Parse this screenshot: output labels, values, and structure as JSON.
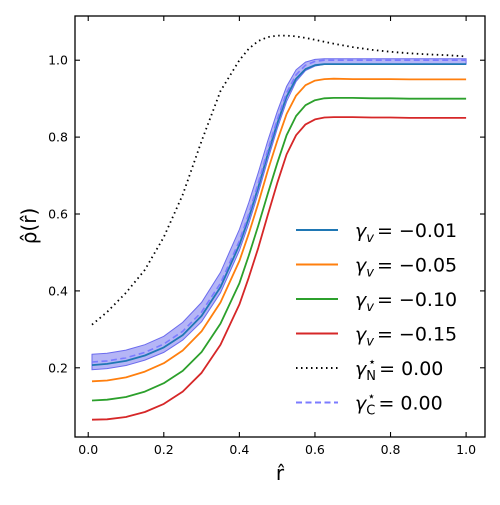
{
  "chart_data": {
    "type": "line",
    "xlabel": "r̂",
    "ylabel": "ρ̂(r̂)",
    "xlim": [
      -0.035,
      1.05
    ],
    "ylim": [
      0.02,
      1.115
    ],
    "x_ticks": [
      0.0,
      0.2,
      0.4,
      0.6,
      0.8,
      1.0
    ],
    "x_tick_labels": [
      "0.0",
      "0.2",
      "0.4",
      "0.6",
      "0.8",
      "1.0"
    ],
    "y_ticks": [
      0.2,
      0.4,
      0.6,
      0.8,
      1.0
    ],
    "y_tick_labels": [
      "0.2",
      "0.4",
      "0.6",
      "0.8",
      "1.0"
    ],
    "grid": false,
    "legend_position": "lower-right",
    "x": [
      0.01,
      0.05,
      0.1,
      0.15,
      0.2,
      0.25,
      0.3,
      0.35,
      0.4,
      0.425,
      0.45,
      0.475,
      0.5,
      0.525,
      0.55,
      0.575,
      0.6,
      0.625,
      0.65,
      0.7,
      0.75,
      0.8,
      0.85,
      0.9,
      0.95,
      1.0
    ],
    "series": [
      {
        "legend": "−0.01",
        "color": "#1f77b4",
        "style": "solid",
        "values": [
          0.207,
          0.21,
          0.218,
          0.232,
          0.253,
          0.285,
          0.335,
          0.41,
          0.52,
          0.59,
          0.67,
          0.755,
          0.835,
          0.905,
          0.952,
          0.977,
          0.987,
          0.99,
          0.99,
          0.99,
          0.99,
          0.99,
          0.99,
          0.99,
          0.99,
          0.99
        ]
      },
      {
        "legend": "−0.05",
        "color": "#ff7f0e",
        "style": "solid",
        "values": [
          0.165,
          0.167,
          0.175,
          0.19,
          0.212,
          0.245,
          0.295,
          0.37,
          0.478,
          0.549,
          0.628,
          0.712,
          0.79,
          0.86,
          0.908,
          0.935,
          0.947,
          0.951,
          0.952,
          0.951,
          0.951,
          0.951,
          0.95,
          0.95,
          0.95,
          0.95
        ]
      },
      {
        "legend": "−0.10",
        "color": "#2ca02c",
        "style": "solid",
        "values": [
          0.115,
          0.117,
          0.124,
          0.138,
          0.16,
          0.192,
          0.241,
          0.315,
          0.42,
          0.492,
          0.57,
          0.652,
          0.732,
          0.805,
          0.855,
          0.883,
          0.896,
          0.901,
          0.902,
          0.902,
          0.901,
          0.901,
          0.9,
          0.9,
          0.9,
          0.9
        ]
      },
      {
        "legend": "−0.15",
        "color": "#d62728",
        "style": "solid",
        "values": [
          0.065,
          0.066,
          0.072,
          0.085,
          0.106,
          0.138,
          0.187,
          0.26,
          0.365,
          0.435,
          0.512,
          0.597,
          0.68,
          0.755,
          0.805,
          0.833,
          0.846,
          0.851,
          0.852,
          0.852,
          0.851,
          0.851,
          0.85,
          0.85,
          0.85,
          0.85
        ]
      },
      {
        "legend": "0.00",
        "color": "#000000",
        "style": "dotted",
        "values": [
          0.312,
          0.345,
          0.395,
          0.455,
          0.54,
          0.65,
          0.79,
          0.92,
          1.0,
          1.03,
          1.05,
          1.06,
          1.064,
          1.064,
          1.062,
          1.058,
          1.053,
          1.048,
          1.043,
          1.034,
          1.027,
          1.022,
          1.018,
          1.015,
          1.013,
          1.01
        ]
      },
      {
        "legend": "0.00",
        "color": "#7b7bff",
        "style": "dashed",
        "values": [
          0.215,
          0.218,
          0.226,
          0.24,
          0.262,
          0.295,
          0.345,
          0.42,
          0.53,
          0.6,
          0.68,
          0.765,
          0.845,
          0.915,
          0.962,
          0.987,
          0.997,
          1.0,
          1.0,
          1.0,
          1.0,
          1.0,
          1.0,
          1.0,
          1.0,
          1.0
        ]
      }
    ],
    "band": {
      "color": "#6b6bee",
      "opacity": 0.5,
      "lower": [
        0.195,
        0.198,
        0.206,
        0.22,
        0.24,
        0.272,
        0.32,
        0.395,
        0.505,
        0.575,
        0.655,
        0.74,
        0.822,
        0.893,
        0.945,
        0.973,
        0.985,
        0.989,
        0.99,
        0.99,
        0.99,
        0.99,
        0.99,
        0.99,
        0.99,
        0.99
      ],
      "upper": [
        0.235,
        0.238,
        0.246,
        0.26,
        0.282,
        0.318,
        0.37,
        0.448,
        0.56,
        0.63,
        0.708,
        0.79,
        0.866,
        0.932,
        0.975,
        0.995,
        1.002,
        1.004,
        1.004,
        1.004,
        1.004,
        1.004,
        1.004,
        1.004,
        1.004,
        1.004
      ]
    }
  }
}
